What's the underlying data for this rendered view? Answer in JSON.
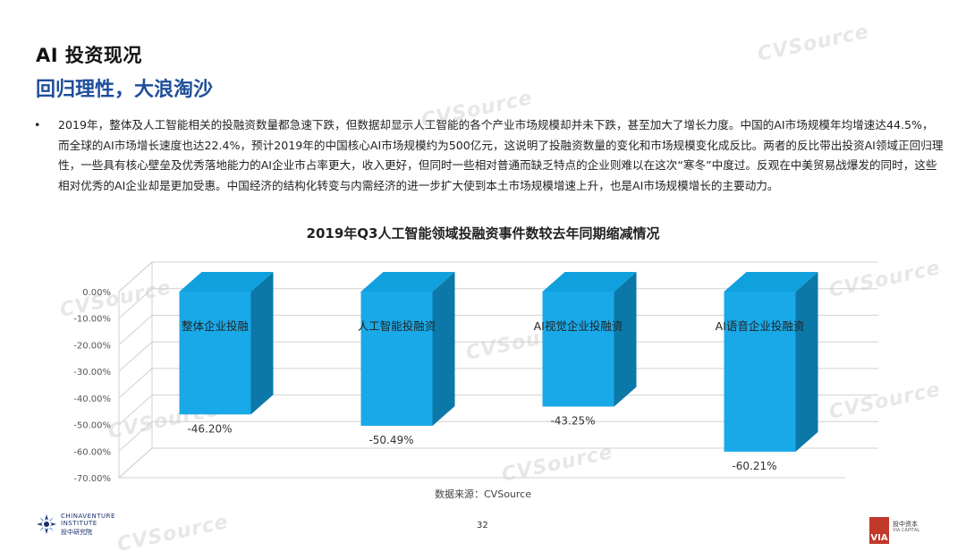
{
  "header": {
    "title": "AI 投资现况",
    "subtitle": "回归理性，大浪淘沙"
  },
  "body": {
    "bullet_char": "•",
    "paragraph": "2019年，整体及人工智能相关的投融资数量都急速下跌，但数据却显示人工智能的各个产业市场规模却并未下跌，甚至加大了增长力度。中国的AI市场规模年均增速达44.5%，而全球的AI市场增长速度也达22.4%，预计2019年的中国核心AI市场规模约为500亿元，这说明了投融资数量的变化和市场规模变化成反比。两者的反比带出投资AI领域正回归理性，一些具有核心壁垒及优秀落地能力的AI企业市占率更大，收入更好，但同时一些相对普通而缺乏特点的企业则难以在这次“寒冬”中度过。反观在中美贸易战爆发的同时，这些相对优秀的AI企业却是更加受惠。中国经济的结构化转变与内需经济的进一步扩大使到本土市场规模增速上升，也是AI市场规模增长的主要动力。"
  },
  "chart_data": {
    "type": "bar",
    "title": "2019年Q3人工智能领域投融资事件数较去年同期缩减情况",
    "categories": [
      "整体企业投融",
      "人工智能投融资",
      "AI视觉企业投融资",
      "AI语音企业投融资"
    ],
    "values": [
      -46.2,
      -50.49,
      -43.25,
      -60.21
    ],
    "value_labels": [
      "-46.20%",
      "-50.49%",
      "-43.25%",
      "-60.21%"
    ],
    "y_ticks": [
      "0.00%",
      "-10.00%",
      "-20.00%",
      "-30.00%",
      "-40.00%",
      "-50.00%",
      "-60.00%",
      "-70.00%"
    ],
    "ylim": [
      -70,
      0
    ],
    "grid": true,
    "legend": "none",
    "style": "3d-column",
    "colors": {
      "front": "#19a9e8",
      "side": "#0b78a8",
      "top": "#11a0de",
      "grid": "#d0d0d0",
      "label": "#222222"
    }
  },
  "footer": {
    "source": "数据来源：CVSource",
    "page_number": "32",
    "logo_left_line1": "CHINAVENTURE",
    "logo_left_line2": "INSTITUTE",
    "logo_left_line3": "投中研究院",
    "logo_right_mark": "VIA",
    "logo_right_line1": "投中资本",
    "logo_right_line2": "VIA CAPITAL"
  },
  "watermark": {
    "text": "CVSource"
  }
}
